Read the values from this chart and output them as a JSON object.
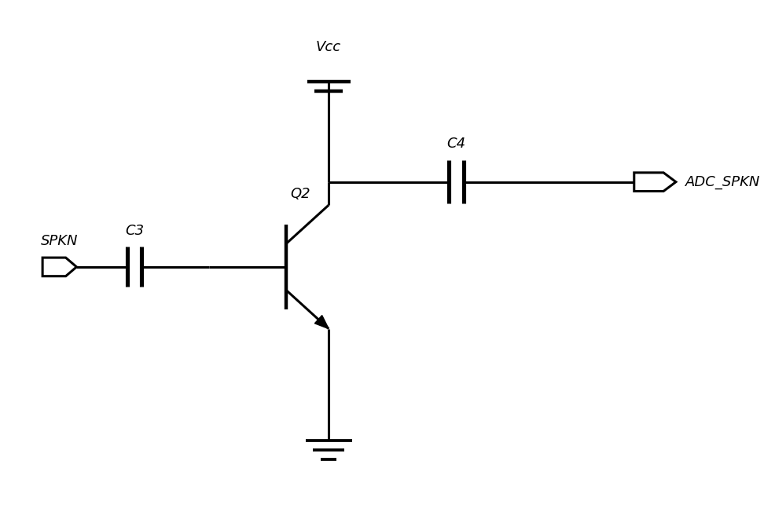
{
  "bg_color": "#ffffff",
  "line_color": "#000000",
  "line_width": 2.2,
  "fig_width": 9.86,
  "fig_height": 6.66,
  "dpi": 100,
  "vcc_label": "Vcc",
  "c3_label": "C3",
  "c4_label": "C4",
  "spkn_label": "SPKN",
  "adc_label": "ADC_SPKN",
  "q2_label": "Q2",
  "font_size": 13
}
